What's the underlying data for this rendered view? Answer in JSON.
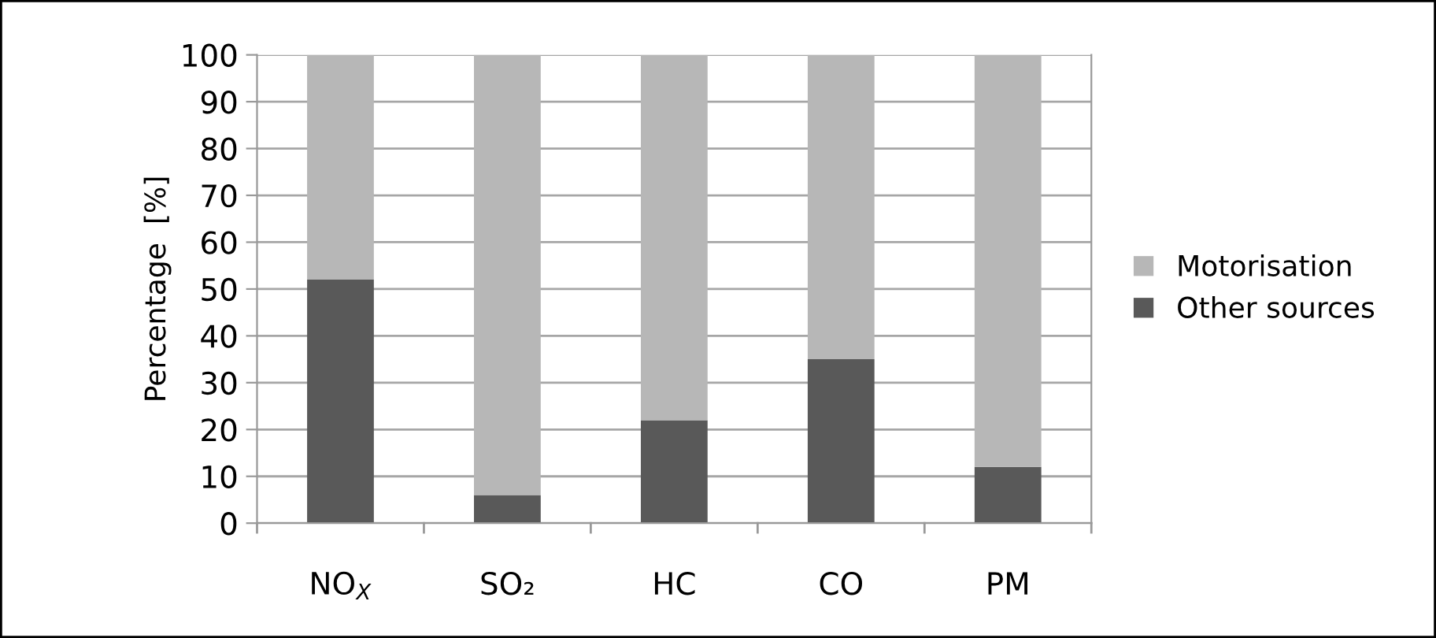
{
  "chart_data": {
    "type": "bar",
    "stacked": true,
    "ylabel": "Percentage  [%]",
    "categories": [
      "NO$_{X}$",
      "SO₂",
      "HC",
      "CO",
      "PM"
    ],
    "series": [
      {
        "name": "Other sources",
        "color": "#595959",
        "values": [
          52,
          6,
          22,
          35,
          12
        ]
      },
      {
        "name": "Motorisation",
        "color": "#b7b7b7",
        "values": [
          48,
          94,
          78,
          65,
          88
        ]
      }
    ],
    "ylim": [
      0,
      100
    ],
    "yticks": [
      0,
      10,
      20,
      30,
      40,
      50,
      60,
      70,
      80,
      90,
      100
    ],
    "grid": "y",
    "legend": "right"
  }
}
